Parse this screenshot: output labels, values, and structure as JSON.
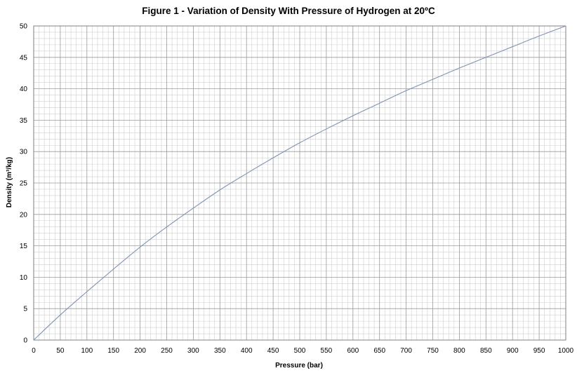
{
  "chart_data": {
    "type": "line",
    "title": "Figure 1 - Variation of Density With Pressure of Hydrogen at 20ºC",
    "xlabel": "Pressure (bar)",
    "ylabel": "Density (m³/kg)",
    "xlim": [
      0,
      1000
    ],
    "ylim": [
      0,
      50
    ],
    "x_ticks": [
      "0",
      "50",
      "100",
      "150",
      "200",
      "250",
      "300",
      "350",
      "400",
      "450",
      "500",
      "550",
      "600",
      "650",
      "700",
      "750",
      "800",
      "850",
      "900",
      "950",
      "1000"
    ],
    "y_ticks": [
      "0",
      "5",
      "10",
      "15",
      "20",
      "25",
      "30",
      "35",
      "40",
      "45",
      "50"
    ],
    "grid": true,
    "series": [
      {
        "x": [
          0,
          50,
          100,
          150,
          200,
          250,
          300,
          350,
          400,
          450,
          500,
          550,
          600,
          650,
          700,
          750,
          800,
          850,
          900,
          950,
          1000
        ],
        "values": [
          0,
          4.0,
          7.7,
          11.3,
          14.8,
          18.0,
          21.0,
          23.9,
          26.5,
          29.0,
          31.4,
          33.6,
          35.7,
          37.7,
          39.7,
          41.5,
          43.3,
          45.0,
          46.7,
          48.4,
          50.0
        ],
        "color": "#7f93b3"
      }
    ]
  }
}
